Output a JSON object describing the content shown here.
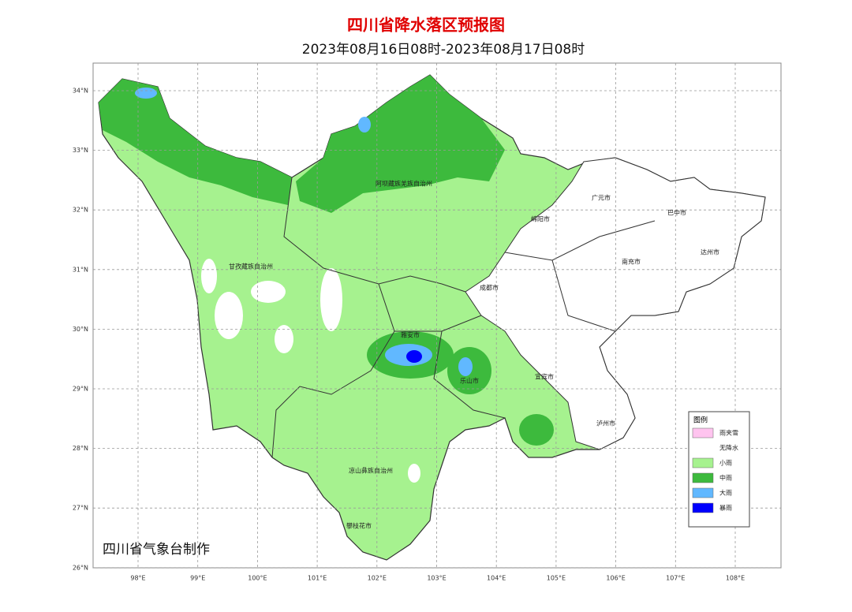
{
  "header": {
    "title": "四川省降水落区预报图",
    "subtitle": "2023年08月16日08时-2023年08月17日08时"
  },
  "map": {
    "lon_labels": [
      "98°E",
      "99°E",
      "100°E",
      "101°E",
      "102°E",
      "103°E",
      "104°E",
      "105°E",
      "106°E",
      "107°E",
      "108°E"
    ],
    "lat_labels": [
      "34°N",
      "33°N",
      "32°N",
      "31°N",
      "30°N",
      "29°N",
      "28°N",
      "27°N",
      "26°N"
    ],
    "regions": [
      "阿坝藏族羌族自治州",
      "甘孜藏族自治州",
      "凉山彝族自治州",
      "攀枝花市",
      "广元市",
      "巴中市",
      "达州市",
      "绵阳市",
      "南充市",
      "成都市",
      "雅安市",
      "乐山市",
      "宜宾市",
      "泸州市"
    ]
  },
  "legend": {
    "title": "图例",
    "items": [
      {
        "label": "雨夹雪",
        "color": "#ffc4ef"
      },
      {
        "label": "无降水",
        "color": "#ffffff"
      },
      {
        "label": "小雨",
        "color": "#a6f28f"
      },
      {
        "label": "中雨",
        "color": "#3dba3d"
      },
      {
        "label": "大雨",
        "color": "#61b8ff"
      },
      {
        "label": "暴雨",
        "color": "#0000fe"
      }
    ]
  },
  "footer": {
    "credit": "四川省气象台制作"
  }
}
